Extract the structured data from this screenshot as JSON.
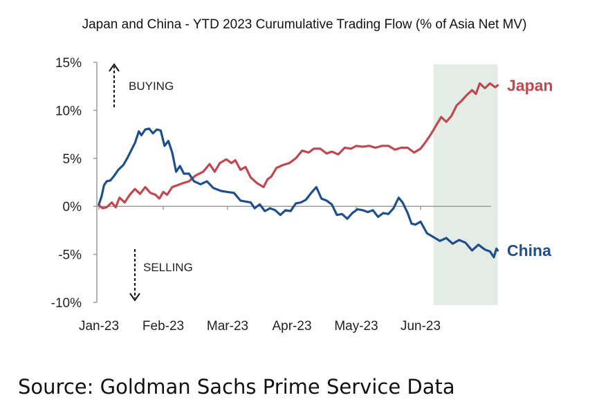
{
  "colors": {
    "japan": "#C0474F",
    "china": "#1F4E8C",
    "shade": "#E4ECE6",
    "axis": "#9C9C9C",
    "text": "#222222"
  },
  "source": "Source: Goldman Sachs Prime Service Data",
  "chart_data": {
    "type": "line",
    "title": "Japan and China - YTD 2023 Curumulative Trading Flow (% of Asia Net MV)",
    "xlabel": "",
    "ylabel": "",
    "ylim": [
      -10,
      15
    ],
    "y_ticks": [
      15,
      10,
      5,
      0,
      -5,
      -10
    ],
    "y_tick_labels": [
      "15%",
      "10%",
      "5%",
      "0%",
      "-5%",
      "-10%"
    ],
    "x_tick_labels": [
      "Jan-23",
      "Feb-23",
      "Mar-23",
      "Apr-23",
      "May-23",
      "Jun-23"
    ],
    "x_unit": "month index (Jan-23 = 0, Feb-23 = 1, ...)",
    "xlim": [
      0,
      6.25
    ],
    "grid": false,
    "legend": "inline labels at line ends",
    "annotations": {
      "buying": "BUYING",
      "selling": "SELLING"
    },
    "shaded_region": {
      "from": 5.2,
      "to": 6.2
    },
    "series": [
      {
        "name": "Japan",
        "x": [
          0,
          0.06,
          0.12,
          0.2,
          0.26,
          0.32,
          0.4,
          0.48,
          0.56,
          0.64,
          0.72,
          0.8,
          0.88,
          0.94,
          1.0,
          1.06,
          1.14,
          1.22,
          1.3,
          1.4,
          1.5,
          1.62,
          1.72,
          1.8,
          1.88,
          1.98,
          2.06,
          2.12,
          2.2,
          2.28,
          2.36,
          2.46,
          2.56,
          2.62,
          2.68,
          2.76,
          2.86,
          2.96,
          3.06,
          3.16,
          3.26,
          3.34,
          3.44,
          3.54,
          3.62,
          3.72,
          3.82,
          3.92,
          4.0,
          4.1,
          4.2,
          4.3,
          4.4,
          4.5,
          4.6,
          4.7,
          4.8,
          4.9,
          5.0,
          5.08,
          5.16,
          5.24,
          5.32,
          5.4,
          5.48,
          5.56,
          5.64,
          5.72,
          5.8,
          5.86,
          5.92,
          6.0,
          6.08,
          6.16,
          6.2
        ],
        "values": [
          0.1,
          -0.2,
          -0.1,
          0.4,
          -0.1,
          0.9,
          0.4,
          1.2,
          1.8,
          1.3,
          2.0,
          1.4,
          1.2,
          0.8,
          1.5,
          1.2,
          2.0,
          2.2,
          2.4,
          2.6,
          3.2,
          3.6,
          4.4,
          3.6,
          4.5,
          4.9,
          4.5,
          4.8,
          3.8,
          4.1,
          3.0,
          2.4,
          2.0,
          2.8,
          3.1,
          4.0,
          4.3,
          4.5,
          5.0,
          5.8,
          5.6,
          6.0,
          6.0,
          5.5,
          5.7,
          5.4,
          6.1,
          6.0,
          6.3,
          6.2,
          6.3,
          6.1,
          6.3,
          6.3,
          5.9,
          6.1,
          6.1,
          5.6,
          6.0,
          6.7,
          7.5,
          8.4,
          9.3,
          8.8,
          9.4,
          10.5,
          11.0,
          11.6,
          12.1,
          11.7,
          12.8,
          12.3,
          12.8,
          12.4,
          12.6
        ]
      },
      {
        "name": "China",
        "x": [
          0,
          0.04,
          0.08,
          0.12,
          0.18,
          0.24,
          0.3,
          0.38,
          0.44,
          0.5,
          0.56,
          0.62,
          0.66,
          0.72,
          0.78,
          0.84,
          0.9,
          0.96,
          1.02,
          1.08,
          1.14,
          1.2,
          1.26,
          1.32,
          1.4,
          1.48,
          1.58,
          1.68,
          1.78,
          1.9,
          2.0,
          2.1,
          2.2,
          2.28,
          2.36,
          2.42,
          2.5,
          2.58,
          2.66,
          2.74,
          2.82,
          2.9,
          2.98,
          3.06,
          3.14,
          3.22,
          3.3,
          3.38,
          3.46,
          3.54,
          3.62,
          3.7,
          3.78,
          3.86,
          3.94,
          4.02,
          4.1,
          4.18,
          4.26,
          4.34,
          4.42,
          4.5,
          4.58,
          4.66,
          4.72,
          4.8,
          4.86,
          4.92,
          5.0,
          5.1,
          5.2,
          5.3,
          5.4,
          5.5,
          5.6,
          5.7,
          5.8,
          5.9,
          6.0,
          6.08,
          6.14,
          6.18,
          6.2
        ],
        "values": [
          0.2,
          1.0,
          2.2,
          2.6,
          2.7,
          3.2,
          3.8,
          4.3,
          5.0,
          5.8,
          6.6,
          7.8,
          7.4,
          8.0,
          8.1,
          7.6,
          8.0,
          7.9,
          6.3,
          6.8,
          5.6,
          3.6,
          4.2,
          3.4,
          3.4,
          2.6,
          2.3,
          2.6,
          1.9,
          1.6,
          1.5,
          1.4,
          0.6,
          0.5,
          0.4,
          -0.2,
          0.2,
          -0.5,
          -0.2,
          -0.4,
          -0.9,
          -0.4,
          -0.5,
          0.3,
          0.4,
          0.7,
          1.4,
          2.0,
          0.8,
          0.6,
          0.2,
          -0.9,
          -0.8,
          -1.3,
          -0.7,
          -0.3,
          -0.4,
          -0.6,
          -0.4,
          -1.1,
          -0.7,
          -0.8,
          -0.2,
          0.9,
          0.4,
          -0.7,
          -1.8,
          -1.9,
          -1.6,
          -2.8,
          -3.2,
          -3.6,
          -3.3,
          -3.9,
          -3.5,
          -3.8,
          -4.6,
          -4.0,
          -4.5,
          -4.7,
          -5.3,
          -4.4,
          -4.6
        ]
      }
    ]
  }
}
